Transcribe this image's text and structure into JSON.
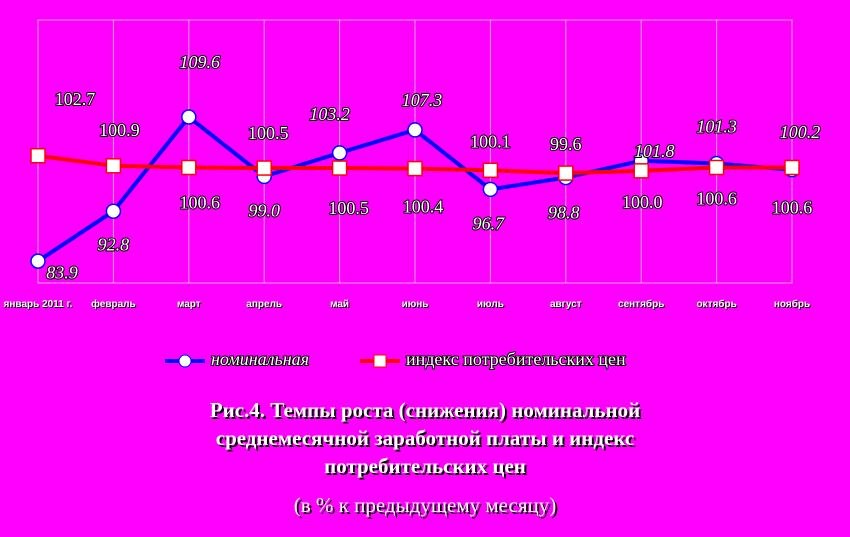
{
  "chart_data": {
    "type": "line",
    "title": "Рис.4. Темпы роста (снижения) номинальной среднемесячной заработной платы и индекс потребительских цен",
    "subtitle": "(в % к предыдущему месяцу)",
    "categories": [
      "январь 2011 г.",
      "февраль",
      "март",
      "апрель",
      "май",
      "июнь",
      "июль",
      "август",
      "сентябрь",
      "октябрь",
      "ноябрь"
    ],
    "series": [
      {
        "name": "номинальная",
        "color": "#0000ff",
        "marker": "circle",
        "values": [
          83.9,
          92.8,
          109.6,
          99.0,
          103.2,
          107.3,
          96.7,
          98.8,
          101.8,
          101.3,
          100.2
        ],
        "value_labels": [
          "83.9",
          "92.8",
          "109.6",
          "99.0",
          "103.2",
          "107.3",
          "96.7",
          "98.8",
          "101.8",
          "101.3",
          "100.2"
        ]
      },
      {
        "name": "индекс потребительских цен",
        "color": "#ff0000",
        "marker": "square",
        "values": [
          102.7,
          100.9,
          100.6,
          100.5,
          100.5,
          100.4,
          100.1,
          99.6,
          100.0,
          100.6,
          100.6
        ],
        "value_labels": [
          "102.7",
          "100.9",
          "100.6",
          "100.5",
          "100.5",
          "100.4",
          "100.1",
          "99.6",
          "100.0",
          "100.6",
          "100.6"
        ]
      }
    ],
    "ylim": [
      80,
      126.9
    ]
  }
}
